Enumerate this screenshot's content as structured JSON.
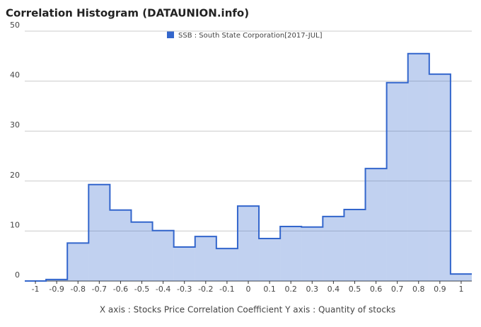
{
  "chart_data": {
    "type": "histogram",
    "title": "Correlation Histogram (DATAUNION.info)",
    "series_name": "SSB : South State Corporation[2017-JUL]",
    "axis_caption": "X axis : Stocks Price Correlation Coefficient  Y axis : Quantity of stocks",
    "color": "#3366cc",
    "bins": [
      -1.05,
      -0.95,
      -0.85,
      -0.75,
      -0.65,
      -0.55,
      -0.45,
      -0.35,
      -0.25,
      -0.15,
      -0.05,
      0.05,
      0.15,
      0.25,
      0.35,
      0.45,
      0.55,
      0.65,
      0.75,
      0.85,
      0.95,
      1.05
    ],
    "values": [
      0,
      0.3,
      7.6,
      19.3,
      14.2,
      11.8,
      10.1,
      6.8,
      8.9,
      6.5,
      15,
      8.5,
      10.9,
      10.8,
      12.9,
      14.3,
      22.5,
      39.7,
      45.5,
      41.4,
      1.4
    ],
    "xlim": [
      -1.05,
      1.05
    ],
    "xticks": [
      -1,
      -0.9,
      -0.8,
      -0.7,
      -0.6,
      -0.5,
      -0.4,
      -0.3,
      -0.2,
      -0.1,
      0,
      0.1,
      0.2,
      0.3,
      0.4,
      0.5,
      0.6,
      0.7,
      0.8,
      0.9,
      1
    ],
    "ylim": [
      0,
      50
    ],
    "yticks": [
      0,
      10,
      20,
      30,
      40,
      50
    ],
    "grid": true
  }
}
